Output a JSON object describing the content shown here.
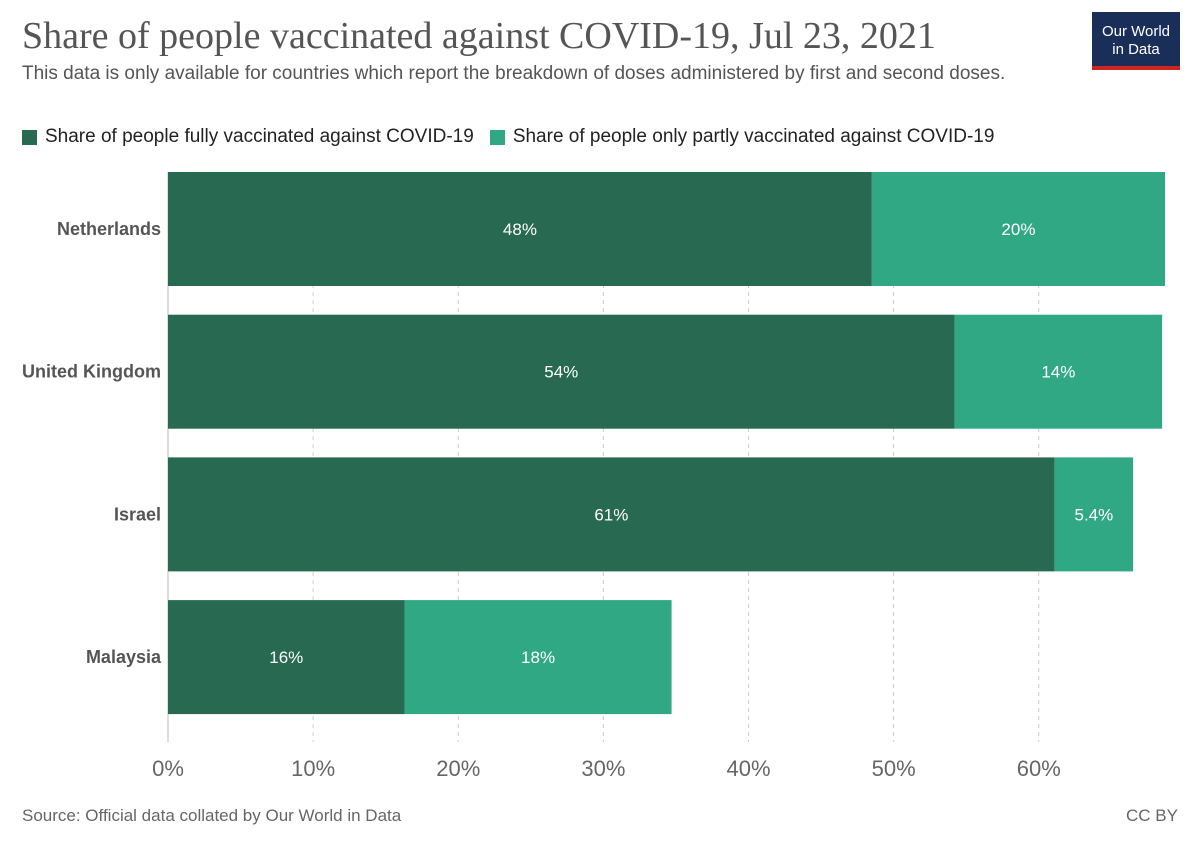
{
  "title": "Share of people vaccinated against COVID-19, Jul 23, 2021",
  "subtitle": "This data is only available for countries which report the breakdown of doses administered by first and second doses.",
  "logo": {
    "line1": "Our World",
    "line2": "in Data"
  },
  "source": "Source: Official data collated by Our World in Data",
  "license": "CC BY",
  "colors": {
    "full": "#276a51",
    "partial": "#31a884",
    "grid": "#cccccc",
    "axis_text": "#666666"
  },
  "chart_data": {
    "type": "bar",
    "orientation": "horizontal",
    "stacked": true,
    "categories": [
      "Netherlands",
      "United Kingdom",
      "Israel",
      "Malaysia"
    ],
    "series": [
      {
        "name": "Share of people fully vaccinated against COVID-19",
        "values": [
          48.5,
          54.2,
          61.1,
          16.3
        ],
        "labels": [
          "48%",
          "54%",
          "61%",
          "16%"
        ]
      },
      {
        "name": "Share of people only partly vaccinated against COVID-19",
        "values": [
          20.2,
          14.3,
          5.4,
          18.4
        ],
        "labels": [
          "20%",
          "14%",
          "5.4%",
          "18%"
        ]
      }
    ],
    "x_ticks": [
      0,
      10,
      20,
      30,
      40,
      50,
      60
    ],
    "x_tick_labels": [
      "0%",
      "10%",
      "20%",
      "30%",
      "40%",
      "50%",
      "60%"
    ],
    "xlim": [
      0,
      68.7
    ],
    "grid": true,
    "legend_position": "top"
  }
}
